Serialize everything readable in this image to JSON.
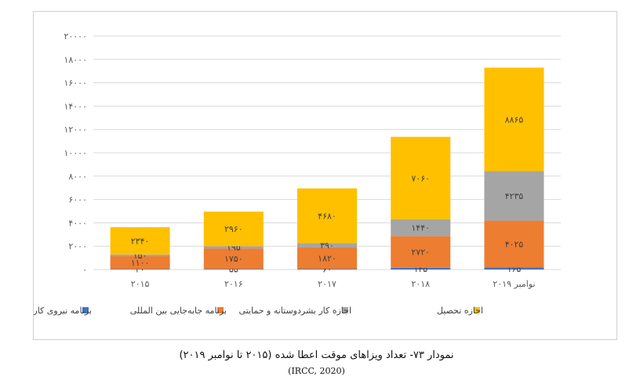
{
  "caption": "نمودار ۷۳- تعداد ویزاهای موقت اعطا شده (۲۰۱۵ تا نوامبر ۲۰۱۹)",
  "source": "(IRCC, 2020)",
  "chart_data": {
    "type": "bar",
    "stacked": true,
    "categories": [
      "۲۰۱۵",
      "۲۰۱۶",
      "۲۰۱۷",
      "۲۰۱۸",
      "نوامبر ۲۰۱۹"
    ],
    "ylim": [
      0,
      20000
    ],
    "yticks": [
      0,
      2000,
      4000,
      6000,
      8000,
      10000,
      12000,
      14000,
      16000,
      18000,
      20000
    ],
    "ytick_labels": [
      "۰",
      "۲۰۰۰",
      "۴۰۰۰",
      "۶۰۰۰",
      "۸۰۰۰",
      "۱۰۰۰۰",
      "۱۲۰۰۰",
      "۱۴۰۰۰",
      "۱۶۰۰۰",
      "۱۸۰۰۰",
      "۲۰۰۰۰"
    ],
    "grid": true,
    "legend_position": "bottom",
    "series": [
      {
        "name": "برنامه نیروی کار موقت خارجی",
        "color": "#4472c4",
        "values": [
          40,
          55,
          60,
          145,
          165
        ],
        "labels": [
          "۴۰",
          "۵۵",
          "۶۰",
          "۱۴۵",
          "۱۶۵"
        ]
      },
      {
        "name": "برنامه جابه‌جایی بین المللی",
        "color": "#ed7d31",
        "values": [
          1100,
          1750,
          1820,
          2720,
          4025
        ],
        "labels": [
          "۱۱۰۰",
          "۱۷۵۰",
          "۱۸۲۰",
          "۲۷۲۰",
          "۴۰۲۵"
        ]
      },
      {
        "name": "اجازه کار بشردوستانه و حمایتی",
        "color": "#a5a5a5",
        "values": [
          150,
          195,
          390,
          1440,
          4235
        ],
        "labels": [
          "۱۵۰",
          "۱۹۵",
          "۳۹۰",
          "۱۴۴۰",
          "۴۲۳۵"
        ]
      },
      {
        "name": "اجازه تحصیل",
        "color": "#ffc000",
        "values": [
          2340,
          2960,
          4680,
          7060,
          8865
        ],
        "labels": [
          "۲۳۴۰",
          "۲۹۶۰",
          "۴۶۸۰",
          "۷۰۶۰",
          "۸۸۶۵"
        ]
      }
    ]
  }
}
